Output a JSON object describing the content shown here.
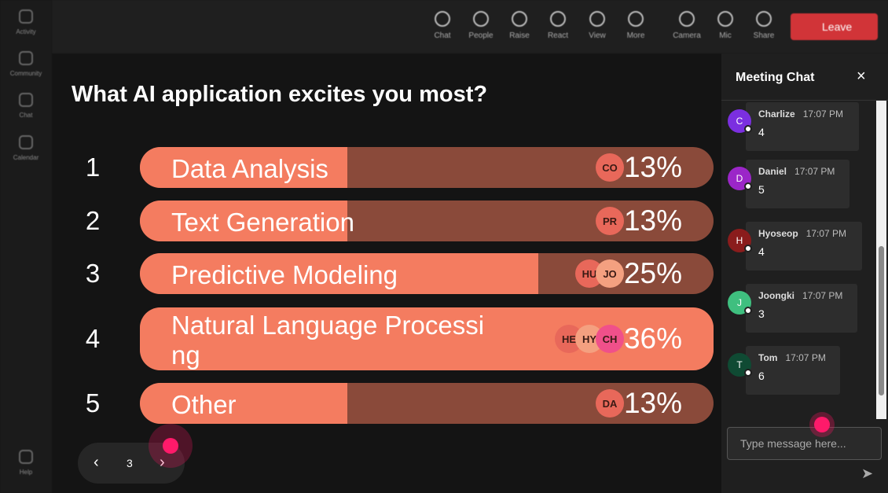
{
  "rail": [
    "Activity",
    "Community",
    "Chat",
    "Calendar",
    "Help"
  ],
  "toolbar": [
    "Chat",
    "People",
    "Raise",
    "React",
    "View",
    "More",
    "Camera",
    "Mic",
    "Share"
  ],
  "leave": "Leave",
  "poll": {
    "question": "What AI application excites you most?",
    "options": [
      {
        "number": "1",
        "label": "Data Analysis",
        "value": 13,
        "value_label": "13%",
        "voters": [
          "CO"
        ]
      },
      {
        "number": "2",
        "label": "Text Generation",
        "value": 13,
        "value_label": "13%",
        "voters": [
          "PR"
        ]
      },
      {
        "number": "3",
        "label": "Predictive Modeling",
        "value": 25,
        "value_label": "25%",
        "voters": [
          "HU",
          "JO"
        ]
      },
      {
        "number": "4",
        "label": "Natural Language Processi ng",
        "value": 36,
        "value_label": "36%",
        "voters": [
          "HE",
          "HY",
          "CH"
        ]
      },
      {
        "number": "5",
        "label": "Other",
        "value": 13,
        "value_label": "13%",
        "voters": [
          "DA"
        ]
      }
    ]
  },
  "pager": {
    "page": "3"
  },
  "chat": {
    "title": "Meeting Chat",
    "placeholder": "Type message here...",
    "messages": [
      {
        "initial": "C",
        "name": "Charlize",
        "time": "17:07 PM",
        "text": "4",
        "color": "#7b2fe0"
      },
      {
        "initial": "D",
        "name": "Daniel",
        "time": "17:07 PM",
        "text": "5",
        "color": "#9b26c8"
      },
      {
        "initial": "H",
        "name": "Hyoseop",
        "time": "17:07 PM",
        "text": "4",
        "color": "#8a1c1c"
      },
      {
        "initial": "J",
        "name": "Joongki",
        "time": "17:07 PM",
        "text": "3",
        "color": "#3fbf7f"
      },
      {
        "initial": "T",
        "name": "Tom",
        "time": "17:07 PM",
        "text": "6",
        "color": "#0f4a33"
      }
    ]
  }
}
